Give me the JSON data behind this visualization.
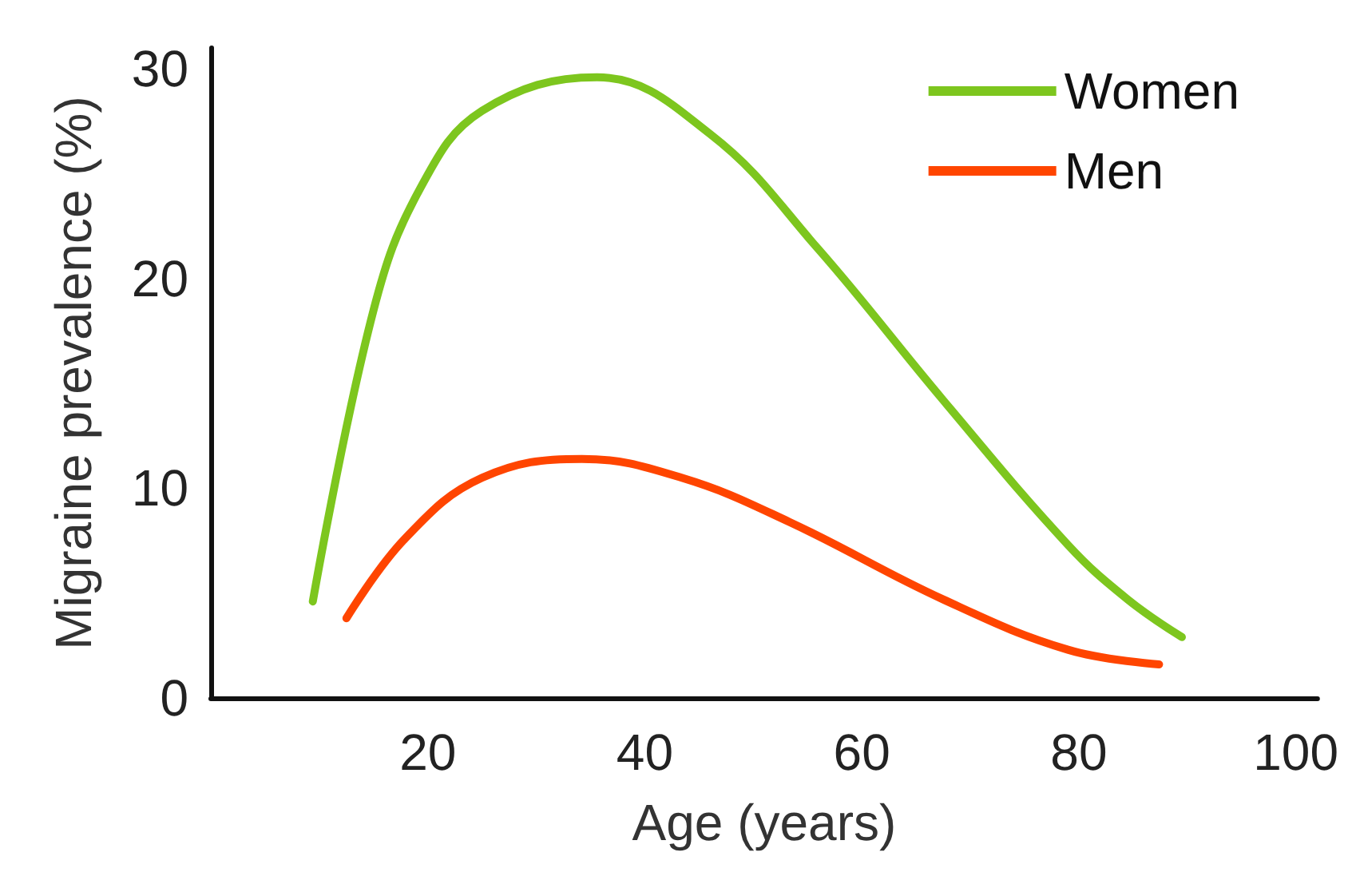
{
  "chart_data": {
    "type": "line",
    "xlabel": "Age (years)",
    "ylabel": "Migraine prevalence (%)",
    "xlim": [
      0,
      102
    ],
    "xticks": [
      20,
      40,
      60,
      80,
      100
    ],
    "ylim": [
      0,
      31
    ],
    "yticks": [
      0,
      10,
      20,
      30
    ],
    "grid": false,
    "legend": "top right",
    "marker": "none",
    "line_style": "solid",
    "series": [
      {
        "name": "Women",
        "color": "#7dc61e",
        "x": [
          9.4,
          15,
          19.3,
          25,
          35.6,
          46,
          56,
          67.5,
          79,
          84.5,
          89.5
        ],
        "values": [
          4.6,
          18.5,
          24.3,
          28,
          29.6,
          26.9,
          21.4,
          14.2,
          7.3,
          4.7,
          2.9
        ]
      },
      {
        "name": "Men",
        "color": "#ff4500",
        "x": [
          12.5,
          17.9,
          25,
          34.2,
          43.4,
          53.3,
          67.5,
          79,
          87.4
        ],
        "values": [
          3.8,
          7.6,
          10.5,
          11.4,
          10.5,
          8.4,
          4.7,
          2.3,
          1.6
        ]
      }
    ]
  }
}
